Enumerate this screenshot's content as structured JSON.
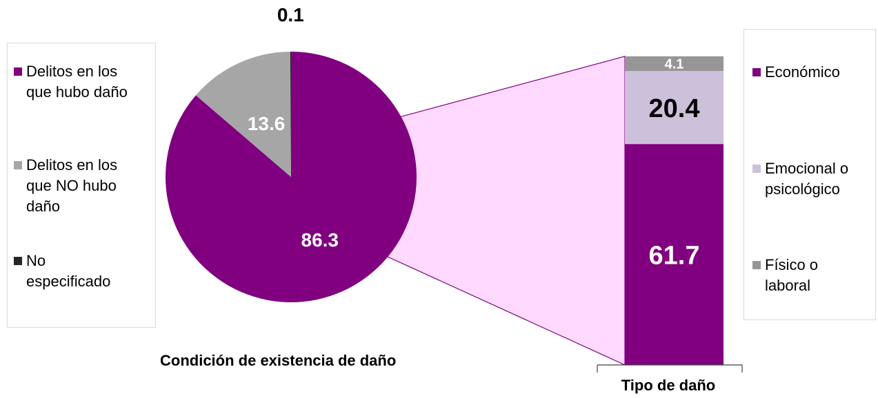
{
  "chart_data": [
    {
      "type": "pie",
      "title": "Condición de existencia de daño",
      "slices": [
        {
          "name": "Delitos en los que hubo daño",
          "value": 86.3,
          "label": "86.3",
          "color": "#800080"
        },
        {
          "name": "Delitos en los que NO hubo daño",
          "value": 13.6,
          "label": "13.6",
          "color": "#a6a6a6"
        },
        {
          "name": "No especificado",
          "value": 0.1,
          "label": "0.1",
          "color": "#262626"
        }
      ]
    },
    {
      "type": "bar",
      "stacked": true,
      "title": "Tipo de daño",
      "segments": [
        {
          "name": "Económico",
          "value": 61.7,
          "label": "61.7",
          "color": "#800080",
          "label_color": "#ffffff"
        },
        {
          "name": "Emocional o psicológico",
          "value": 20.4,
          "label": "20.4",
          "color": "#ccc0da",
          "label_color": "#000000"
        },
        {
          "name": "Físico o laboral",
          "value": 4.1,
          "label": "4.1",
          "color": "#969696",
          "label_color": "#ffffff"
        }
      ]
    }
  ],
  "legend_left": [
    {
      "label": "Delitos en los\nque hubo daño",
      "color": "#800080"
    },
    {
      "label": "Delitos en los\nque NO hubo\ndaño",
      "color": "#a6a6a6"
    },
    {
      "label": "No\nespecificado",
      "color": "#262626"
    }
  ],
  "legend_right": [
    {
      "label": "Económico",
      "color": "#800080"
    },
    {
      "label": "Emocional o\npsicológico",
      "color": "#ccc0da"
    },
    {
      "label": "Físico o\nlaboral",
      "color": "#969696"
    }
  ],
  "connector_color": "#ffd9ff"
}
